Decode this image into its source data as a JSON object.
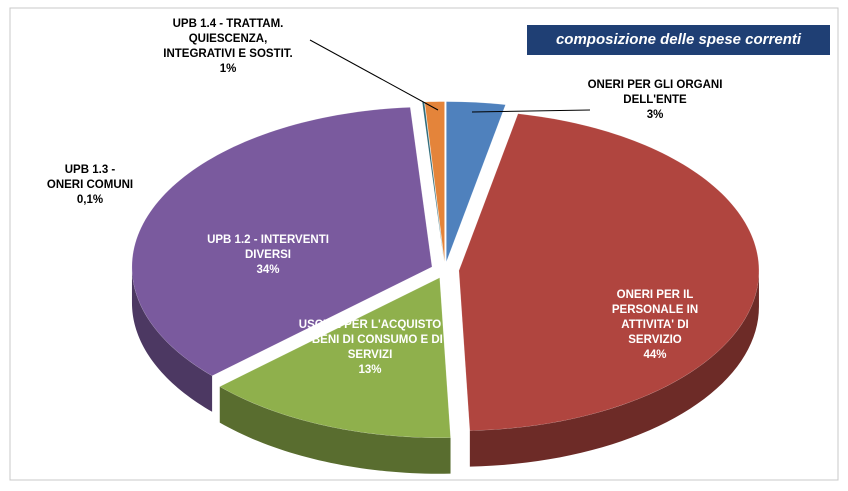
{
  "chart_data": {
    "type": "pie3d",
    "title": "composizione delle spese correnti",
    "categories": [
      "ONERI PER GLI ORGANI DELL'ENTE",
      "ONERI PER IL PERSONALE IN ATTIVITA' DI SERVIZIO",
      "USCITE PER L'ACQUISTO DI BENI DI CONSUMO E DI SERVIZI",
      "UPB 1.2 - INTERVENTI DIVERSI",
      "UPB 1.3 - ONERI COMUNI",
      "UPB 1.4 - TRATTAM. QUIESCENZA, INTEGRATIVI E SOSTIT."
    ],
    "values": [
      3,
      44,
      13,
      34,
      0.1,
      1
    ],
    "value_labels": [
      "3%",
      "44%",
      "13%",
      "34%",
      "0,1%",
      "1%"
    ],
    "colors": [
      "#4f81bd",
      "#b0453f",
      "#8fb04c",
      "#7a5a9e",
      "#2f6b7a",
      "#e4843a"
    ]
  }
}
